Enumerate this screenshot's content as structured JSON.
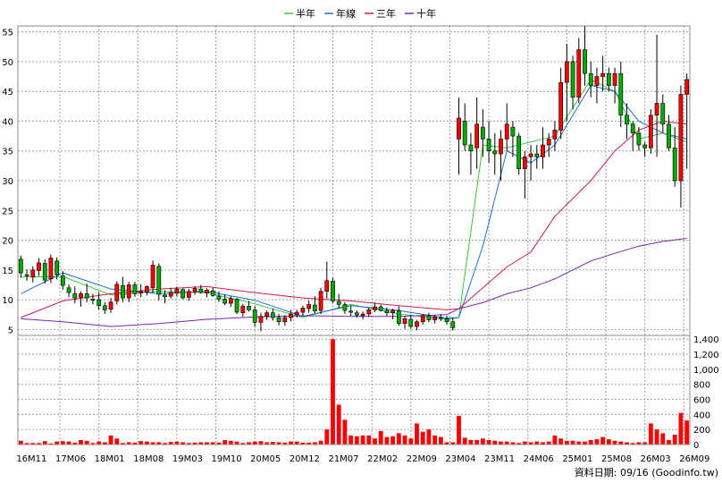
{
  "chart_data": {
    "type": "candlestick",
    "legend": {
      "placement": "top-center",
      "items": [
        {
          "label": "半年",
          "color": "#33cc33"
        },
        {
          "label": "年線",
          "color": "#1f6fd6"
        },
        {
          "label": "三年",
          "color": "#d01a4c"
        },
        {
          "label": "十年",
          "color": "#7a22b8"
        }
      ]
    },
    "grid": true,
    "x_tick_labels": [
      "16M11",
      "17M06",
      "18M01",
      "18M08",
      "19M03",
      "19M10",
      "20M05",
      "20M12",
      "21M07",
      "22M02",
      "22M09",
      "23M04",
      "23M11",
      "24M06",
      "25M01",
      "25M08",
      "26M03",
      "26M09"
    ],
    "price_axis": {
      "ylim": [
        4,
        56
      ],
      "ticks": [
        5,
        10,
        15,
        20,
        25,
        30,
        35,
        40,
        45,
        50,
        55
      ],
      "side": "left"
    },
    "volume_axis": {
      "ylim": [
        0,
        1450
      ],
      "ticks": [
        0,
        200,
        400,
        600,
        800,
        1000,
        1200,
        1400
      ],
      "tick_labels": [
        "0",
        "200",
        "400",
        "600",
        "800",
        "1,000",
        "1,200",
        "1,400"
      ],
      "side": "right"
    },
    "colors": {
      "up": "#ff0000",
      "down": "#00aa00",
      "volume": "#ff0000",
      "wick": "#000000"
    },
    "candles": [
      [
        16.8,
        17.4,
        13.7,
        14.5
      ],
      [
        14.2,
        15.1,
        13.2,
        14.0
      ],
      [
        13.8,
        15.6,
        12.9,
        15.0
      ],
      [
        14.9,
        17.0,
        14.0,
        16.2
      ],
      [
        16.1,
        16.8,
        12.7,
        13.3
      ],
      [
        13.5,
        17.6,
        12.8,
        17.0
      ],
      [
        16.5,
        17.1,
        13.4,
        14.2
      ],
      [
        14.0,
        14.8,
        11.7,
        12.4
      ],
      [
        12.0,
        12.6,
        10.4,
        11.2
      ],
      [
        11.0,
        12.2,
        9.4,
        10.3
      ],
      [
        10.4,
        11.4,
        8.8,
        11.0
      ],
      [
        11.0,
        12.7,
        9.6,
        10.3
      ],
      [
        10.1,
        11.0,
        9.2,
        9.9
      ],
      [
        10.0,
        11.2,
        8.3,
        9.0
      ],
      [
        9.0,
        9.6,
        7.6,
        8.3
      ],
      [
        8.4,
        10.3,
        7.8,
        9.6
      ],
      [
        9.8,
        13.1,
        9.2,
        12.6
      ],
      [
        12.4,
        13.8,
        9.6,
        10.3
      ],
      [
        10.3,
        13.0,
        9.6,
        12.5
      ],
      [
        12.5,
        13.0,
        10.5,
        11.0
      ],
      [
        11.1,
        12.6,
        10.4,
        11.4
      ],
      [
        11.3,
        12.4,
        10.7,
        12.2
      ],
      [
        12.0,
        16.6,
        11.1,
        15.8
      ],
      [
        15.6,
        16.1,
        9.9,
        10.9
      ],
      [
        10.8,
        11.6,
        9.4,
        10.5
      ],
      [
        10.6,
        12.0,
        10.2,
        11.2
      ],
      [
        11.1,
        12.2,
        10.5,
        11.8
      ],
      [
        11.7,
        11.9,
        10.1,
        10.3
      ],
      [
        10.4,
        11.8,
        9.8,
        11.4
      ],
      [
        11.3,
        12.3,
        10.8,
        11.9
      ],
      [
        11.8,
        12.5,
        11.0,
        11.2
      ],
      [
        11.1,
        11.9,
        10.4,
        11.6
      ],
      [
        11.5,
        12.0,
        10.5,
        10.7
      ],
      [
        10.6,
        11.4,
        9.6,
        10.1
      ],
      [
        10.1,
        10.9,
        9.1,
        9.4
      ],
      [
        9.4,
        10.6,
        8.8,
        10.2
      ],
      [
        10.1,
        10.3,
        7.6,
        7.9
      ],
      [
        7.8,
        9.3,
        7.1,
        8.9
      ],
      [
        8.9,
        9.8,
        8.0,
        8.3
      ],
      [
        8.3,
        8.9,
        5.5,
        6.2
      ],
      [
        6.2,
        7.8,
        4.7,
        7.2
      ],
      [
        7.2,
        8.2,
        6.6,
        7.8
      ],
      [
        7.8,
        8.5,
        6.5,
        7.0
      ],
      [
        7.0,
        7.6,
        5.7,
        6.3
      ],
      [
        6.3,
        7.4,
        5.6,
        7.0
      ],
      [
        7.0,
        8.3,
        6.4,
        7.6
      ],
      [
        7.5,
        8.3,
        7.0,
        7.9
      ],
      [
        7.9,
        9.0,
        7.3,
        8.6
      ],
      [
        8.5,
        9.9,
        7.8,
        9.2
      ],
      [
        9.1,
        10.6,
        7.7,
        8.1
      ],
      [
        8.2,
        12.0,
        7.6,
        11.4
      ],
      [
        11.4,
        16.4,
        10.2,
        13.2
      ],
      [
        13.1,
        13.7,
        9.4,
        9.8
      ],
      [
        9.7,
        11.0,
        8.5,
        9.2
      ],
      [
        9.2,
        9.6,
        7.6,
        8.2
      ],
      [
        8.1,
        9.0,
        7.3,
        7.9
      ],
      [
        7.8,
        8.2,
        7.0,
        7.4
      ],
      [
        7.3,
        8.0,
        6.7,
        7.6
      ],
      [
        7.6,
        8.7,
        7.1,
        8.3
      ],
      [
        8.3,
        9.5,
        7.9,
        8.8
      ],
      [
        8.8,
        9.2,
        8.0,
        8.2
      ],
      [
        8.2,
        8.7,
        7.3,
        7.8
      ],
      [
        7.8,
        8.5,
        6.7,
        8.2
      ],
      [
        8.1,
        8.9,
        5.6,
        6.0
      ],
      [
        6.0,
        7.2,
        5.1,
        6.8
      ],
      [
        6.7,
        7.5,
        5.1,
        5.5
      ],
      [
        5.5,
        6.6,
        4.9,
        6.3
      ],
      [
        6.3,
        7.6,
        5.8,
        7.3
      ],
      [
        7.3,
        7.8,
        6.2,
        6.6
      ],
      [
        6.6,
        7.4,
        6.0,
        7.1
      ],
      [
        7.0,
        7.6,
        6.4,
        6.8
      ],
      [
        6.8,
        7.3,
        5.8,
        6.3
      ],
      [
        6.3,
        7.0,
        4.8,
        5.3
      ],
      [
        37.0,
        44.0,
        31.0,
        40.5
      ],
      [
        40.0,
        43.0,
        35.0,
        36.0
      ],
      [
        36.0,
        38.0,
        31.0,
        35.0
      ],
      [
        35.5,
        44.0,
        32.0,
        39.5
      ],
      [
        39.0,
        42.0,
        34.0,
        37.0
      ],
      [
        37.0,
        40.0,
        33.0,
        35.0
      ],
      [
        35.0,
        38.0,
        31.0,
        34.5
      ],
      [
        34.5,
        38.5,
        30.0,
        37.0
      ],
      [
        37.0,
        43.0,
        35.0,
        39.5
      ],
      [
        39.0,
        40.0,
        34.0,
        37.5
      ],
      [
        37.5,
        38.0,
        31.0,
        32.0
      ],
      [
        32.0,
        35.0,
        27.0,
        34.0
      ],
      [
        34.0,
        36.0,
        30.0,
        34.5
      ],
      [
        34.5,
        36.0,
        32.0,
        34.0
      ],
      [
        34.0,
        39.0,
        32.0,
        36.0
      ],
      [
        36.0,
        38.0,
        34.0,
        37.0
      ],
      [
        37.0,
        40.0,
        35.0,
        38.5
      ],
      [
        38.5,
        49.0,
        37.0,
        46.5
      ],
      [
        46.5,
        53.0,
        40.0,
        50.0
      ],
      [
        50.0,
        51.0,
        42.0,
        44.0
      ],
      [
        44.0,
        54.0,
        43.0,
        52.0
      ],
      [
        52.0,
        56.0,
        46.0,
        48.0
      ],
      [
        48.0,
        50.0,
        44.0,
        46.0
      ],
      [
        46.0,
        49.0,
        43.0,
        47.5
      ],
      [
        47.5,
        51.0,
        45.0,
        48.0
      ],
      [
        48.0,
        49.0,
        45.0,
        46.0
      ],
      [
        46.0,
        49.0,
        43.0,
        48.0
      ],
      [
        48.0,
        50.0,
        39.0,
        41.0
      ],
      [
        41.0,
        43.0,
        37.0,
        39.5
      ],
      [
        39.5,
        40.0,
        35.0,
        38.0
      ],
      [
        38.0,
        39.0,
        35.0,
        36.0
      ],
      [
        36.0,
        36.5,
        34.0,
        35.5
      ],
      [
        35.5,
        42.0,
        34.5,
        41.0
      ],
      [
        41.0,
        54.5,
        34.0,
        43.0
      ],
      [
        43.0,
        44.5,
        38.0,
        39.5
      ],
      [
        39.5,
        41.0,
        35.0,
        35.5
      ],
      [
        35.5,
        39.0,
        29.0,
        30.0
      ],
      [
        30.0,
        46.0,
        25.5,
        44.5
      ],
      [
        44.5,
        48.0,
        32.0,
        47.0
      ]
    ],
    "volumes": [
      50,
      20,
      20,
      20,
      45,
      15,
      40,
      45,
      40,
      25,
      60,
      50,
      20,
      40,
      30,
      120,
      80,
      20,
      30,
      25,
      45,
      40,
      30,
      30,
      20,
      35,
      40,
      30,
      20,
      25,
      30,
      30,
      30,
      25,
      60,
      50,
      40,
      20,
      30,
      40,
      45,
      30,
      35,
      30,
      25,
      40,
      40,
      25,
      25,
      30,
      50,
      200,
      1400,
      530,
      330,
      120,
      110,
      120,
      120,
      80,
      180,
      100,
      110,
      150,
      120,
      80,
      280,
      170,
      200,
      120,
      100,
      30,
      30,
      380,
      90,
      60,
      60,
      80,
      60,
      50,
      40,
      40,
      30,
      20,
      40,
      30,
      40,
      30,
      40,
      120,
      80,
      50,
      50,
      40,
      40,
      60,
      70,
      100,
      70,
      50,
      40,
      30,
      20,
      30,
      30,
      280,
      200,
      150,
      60,
      130,
      420,
      320
    ],
    "ma_half_year": [
      [
        0,
        13.8
      ],
      [
        7,
        13.9
      ],
      [
        15,
        10.8
      ],
      [
        23,
        11.4
      ],
      [
        31,
        11.2
      ],
      [
        39,
        9.3
      ],
      [
        47,
        7.0
      ],
      [
        55,
        9.2
      ],
      [
        63,
        7.6
      ],
      [
        71,
        6.7
      ],
      [
        73,
        7.0
      ],
      [
        77,
        36.0
      ],
      [
        81,
        35.5
      ],
      [
        89,
        37.5
      ],
      [
        95,
        47.0
      ],
      [
        99,
        45.0
      ],
      [
        103,
        37.0
      ],
      [
        107,
        38.0
      ],
      [
        111,
        36.5
      ]
    ],
    "ma_year": [
      [
        0,
        11.0
      ],
      [
        7,
        14.5
      ],
      [
        15,
        11.8
      ],
      [
        23,
        11.0
      ],
      [
        31,
        11.4
      ],
      [
        39,
        9.9
      ],
      [
        47,
        7.2
      ],
      [
        55,
        9.0
      ],
      [
        63,
        8.2
      ],
      [
        71,
        6.9
      ],
      [
        73,
        7.0
      ],
      [
        77,
        19.0
      ],
      [
        81,
        35.0
      ],
      [
        85,
        33.0
      ],
      [
        89,
        36.0
      ],
      [
        95,
        46.0
      ],
      [
        99,
        45.0
      ],
      [
        103,
        40.0
      ],
      [
        107,
        38.0
      ],
      [
        111,
        37.0
      ]
    ],
    "ma_three_year": [
      [
        0,
        7.0
      ],
      [
        7,
        9.8
      ],
      [
        15,
        11.0
      ],
      [
        23,
        11.8
      ],
      [
        31,
        12.2
      ],
      [
        39,
        11.2
      ],
      [
        47,
        10.3
      ],
      [
        55,
        9.8
      ],
      [
        63,
        9.0
      ],
      [
        71,
        8.3
      ],
      [
        73,
        8.5
      ],
      [
        77,
        12.0
      ],
      [
        81,
        15.5
      ],
      [
        85,
        18.0
      ],
      [
        89,
        24.0
      ],
      [
        95,
        30.0
      ],
      [
        99,
        35.0
      ],
      [
        103,
        38.5
      ],
      [
        107,
        40.0
      ],
      [
        111,
        39.5
      ]
    ],
    "ma_ten_year": [
      [
        0,
        6.8
      ],
      [
        7,
        6.3
      ],
      [
        15,
        5.5
      ],
      [
        23,
        6.0
      ],
      [
        31,
        6.7
      ],
      [
        39,
        7.1
      ],
      [
        47,
        7.3
      ],
      [
        55,
        7.2
      ],
      [
        63,
        7.2
      ],
      [
        71,
        7.5
      ],
      [
        73,
        8.5
      ],
      [
        77,
        9.5
      ],
      [
        81,
        11.0
      ],
      [
        85,
        12.0
      ],
      [
        89,
        13.5
      ],
      [
        95,
        16.5
      ],
      [
        99,
        17.8
      ],
      [
        103,
        19.0
      ],
      [
        107,
        19.8
      ],
      [
        111,
        20.3
      ]
    ],
    "source_note": "資料日期: 09/16 (Goodinfo.tw)"
  }
}
